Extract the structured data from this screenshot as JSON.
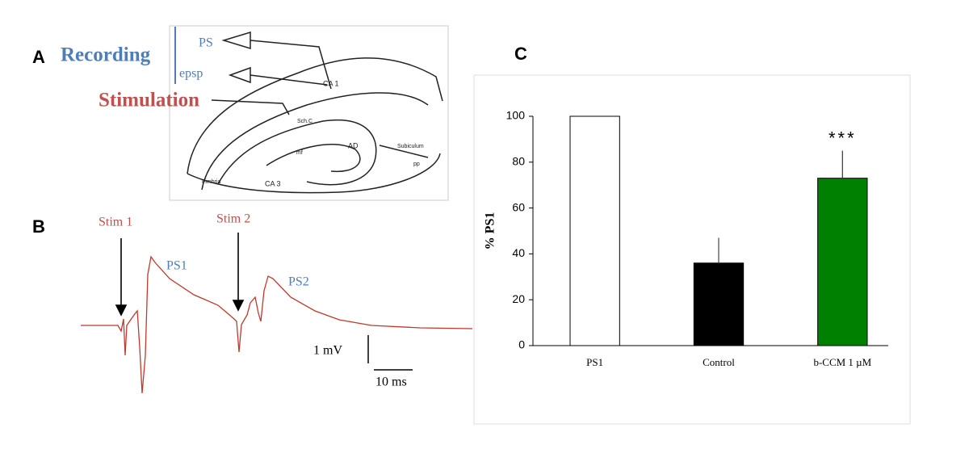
{
  "panel_labels": [
    "A",
    "B",
    "C"
  ],
  "panel_a": {
    "recording": "Recording",
    "stimulation": "Stimulation",
    "ps": "PS",
    "epsp": "epsp",
    "regions": [
      "CA 1",
      "CA 3",
      "AD",
      "Subiculum",
      "Fimbria",
      "mf",
      "Sch.C",
      "pp"
    ]
  },
  "panel_b": {
    "stim1": "Stim 1",
    "stim2": "Stim 2",
    "ps1": "PS1",
    "ps2": "PS2",
    "scale_v": "1 mV",
    "scale_t": "10 ms"
  },
  "chart_data": {
    "type": "bar",
    "ylabel": "% PS1",
    "categories": [
      "PS1",
      "Control",
      "b-CCM 1 µM"
    ],
    "values": [
      100,
      36,
      73
    ],
    "errors": [
      null,
      11,
      12
    ],
    "colors": [
      "#ffffff",
      "#000000",
      "#008000"
    ],
    "ylim": [
      0,
      100
    ],
    "yticks": [
      0,
      20,
      40,
      60,
      80,
      100
    ],
    "annotations": [
      {
        "text": "***",
        "category": "b-CCM 1 µM"
      }
    ]
  }
}
